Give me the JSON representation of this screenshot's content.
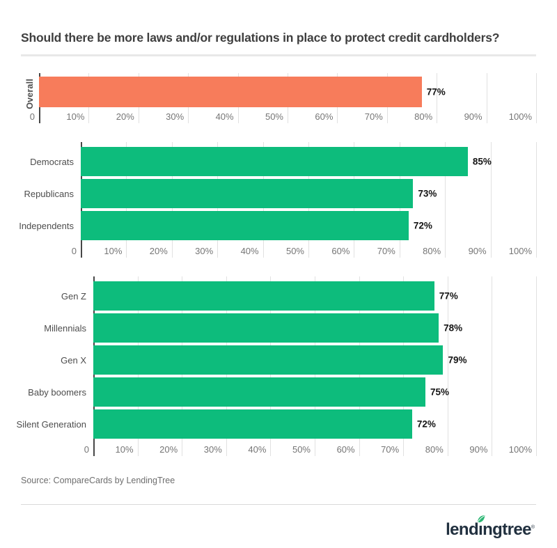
{
  "title": "Should there be more laws and/or regulations in place to protect credit cardholders?",
  "source": "Source: CompareCards by LendingTree",
  "logo": {
    "name": "LendingTree",
    "text_pre": "lend",
    "text_i": "ı",
    "text_post": "ngtree",
    "trademark": "®",
    "navy": "#21303F",
    "leaf_green": "#2BB673"
  },
  "colors": {
    "orange": "#F77C5B",
    "green": "#0DBC7C",
    "gridline": "#E1E1E1",
    "axis": "#474747",
    "tick_text": "#757575",
    "category_text": "#4D4D4D",
    "value_text": "#141414",
    "title_text": "#3F3F3F",
    "divider": "#E8E8E8",
    "source_text": "#6E6E6E",
    "logo_navy": "#21303F"
  },
  "chart_data": [
    {
      "type": "bar",
      "orientation": "horizontal",
      "title": "",
      "categories": [
        "Overall"
      ],
      "values": [
        77
      ],
      "value_labels": [
        "77%"
      ],
      "bar_color": "#F77C5B",
      "vertical_category_label": true,
      "xlim": [
        0,
        100
      ],
      "grid": true,
      "tick_labels": [
        "0",
        "10%",
        "20%",
        "30%",
        "40%",
        "50%",
        "60%",
        "70%",
        "80%",
        "90%",
        "100%"
      ]
    },
    {
      "type": "bar",
      "orientation": "horizontal",
      "title": "",
      "categories": [
        "Democrats",
        "Republicans",
        "Independents"
      ],
      "values": [
        85,
        73,
        72
      ],
      "value_labels": [
        "85%",
        "73%",
        "72%"
      ],
      "bar_color": "#0DBC7C",
      "vertical_category_label": false,
      "xlim": [
        0,
        100
      ],
      "grid": true,
      "tick_labels": [
        "0",
        "10%",
        "20%",
        "30%",
        "40%",
        "50%",
        "60%",
        "70%",
        "80%",
        "90%",
        "100%"
      ]
    },
    {
      "type": "bar",
      "orientation": "horizontal",
      "title": "",
      "categories": [
        "Gen Z",
        "Millennials",
        "Gen X",
        "Baby boomers",
        "Silent Generation"
      ],
      "values": [
        77,
        78,
        79,
        75,
        72
      ],
      "value_labels": [
        "77%",
        "78%",
        "79%",
        "75%",
        "72%"
      ],
      "bar_color": "#0DBC7C",
      "vertical_category_label": false,
      "xlim": [
        0,
        100
      ],
      "grid": true,
      "tick_labels": [
        "0",
        "10%",
        "20%",
        "30%",
        "40%",
        "50%",
        "60%",
        "70%",
        "80%",
        "90%",
        "100%"
      ]
    }
  ]
}
